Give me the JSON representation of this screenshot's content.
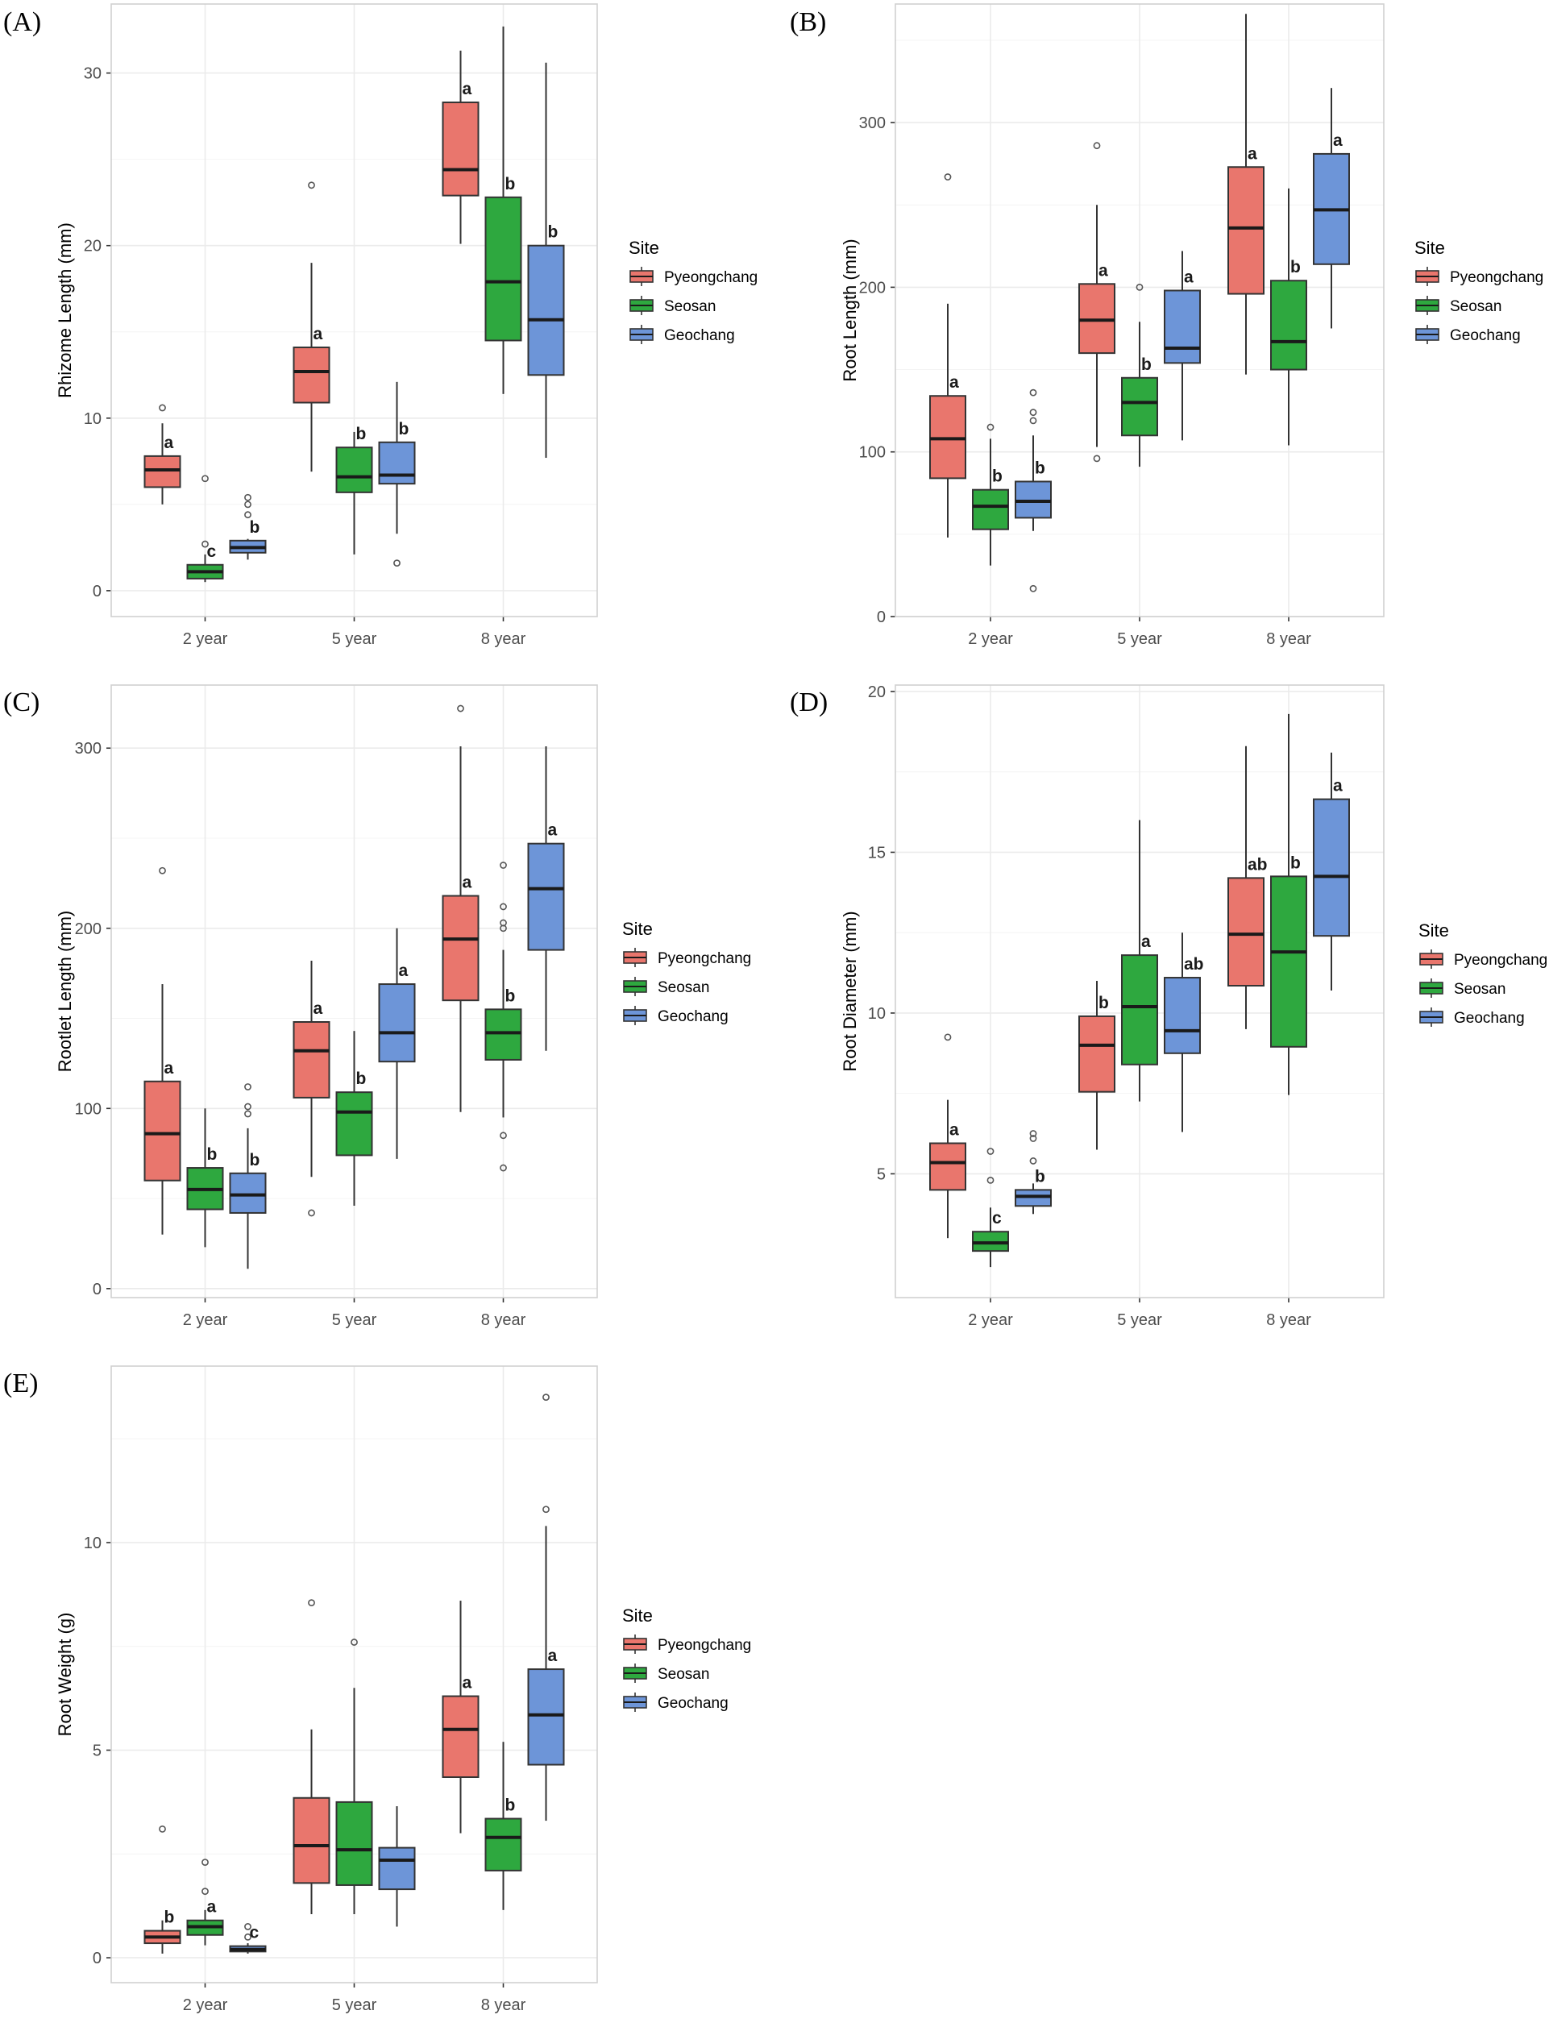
{
  "legend": {
    "title": "Site",
    "entries": [
      {
        "name": "Pyeongchang",
        "color": "#e9766d"
      },
      {
        "name": "Seosan",
        "color": "#2ea83f"
      },
      {
        "name": "Geochang",
        "color": "#6d95d8"
      }
    ]
  },
  "chart_data": [
    {
      "panel": "(A)",
      "type": "boxplot",
      "ylabel": "Rhizome Length (mm)",
      "categories": [
        "2 year",
        "5 year",
        "8 year"
      ],
      "ylim": [
        -1.5,
        34
      ],
      "yticks": [
        0,
        10,
        20,
        30
      ],
      "series": [
        {
          "name": "Pyeongchang",
          "boxes": [
            {
              "min": 5.0,
              "q1": 6.0,
              "median": 7.0,
              "q3": 7.8,
              "max": 9.7,
              "outliers": [
                10.6
              ],
              "letter": "a"
            },
            {
              "min": 6.9,
              "q1": 10.9,
              "median": 12.7,
              "q3": 14.1,
              "max": 19.0,
              "outliers": [
                23.5
              ],
              "letter": "a"
            },
            {
              "min": 20.1,
              "q1": 22.9,
              "median": 24.4,
              "q3": 28.3,
              "max": 31.3,
              "outliers": [],
              "letter": "a"
            }
          ]
        },
        {
          "name": "Seosan",
          "boxes": [
            {
              "min": 0.5,
              "q1": 0.7,
              "median": 1.1,
              "q3": 1.5,
              "max": 2.1,
              "outliers": [
                2.7,
                6.5
              ],
              "letter": "c"
            },
            {
              "min": 2.1,
              "q1": 5.7,
              "median": 6.6,
              "q3": 8.3,
              "max": 9.2,
              "outliers": [],
              "letter": "b"
            },
            {
              "min": 11.4,
              "q1": 14.5,
              "median": 17.9,
              "q3": 22.8,
              "max": 32.7,
              "outliers": [],
              "letter": "b"
            }
          ]
        },
        {
          "name": "Geochang",
          "boxes": [
            {
              "min": 1.8,
              "q1": 2.2,
              "median": 2.5,
              "q3": 2.9,
              "max": 3.0,
              "outliers": [
                4.4,
                5.0,
                5.4
              ],
              "letter": "b"
            },
            {
              "min": 3.3,
              "q1": 6.2,
              "median": 6.7,
              "q3": 8.6,
              "max": 12.1,
              "outliers": [
                1.6
              ],
              "letter": "b"
            },
            {
              "min": 7.7,
              "q1": 12.5,
              "median": 15.7,
              "q3": 20.0,
              "max": 30.6,
              "outliers": [],
              "letter": "b"
            }
          ]
        }
      ]
    },
    {
      "panel": "(B)",
      "type": "boxplot",
      "ylabel": "Root Length (mm)",
      "categories": [
        "2 year",
        "5 year",
        "8 year"
      ],
      "ylim": [
        0,
        372
      ],
      "yticks": [
        0,
        100,
        200,
        300
      ],
      "series": [
        {
          "name": "Pyeongchang",
          "boxes": [
            {
              "min": 48,
              "q1": 84,
              "median": 108,
              "q3": 134,
              "max": 190,
              "outliers": [
                267
              ],
              "letter": "a"
            },
            {
              "min": 103,
              "q1": 160,
              "median": 180,
              "q3": 202,
              "max": 250,
              "outliers": [
                96,
                286
              ],
              "letter": "a"
            },
            {
              "min": 147,
              "q1": 196,
              "median": 236,
              "q3": 273,
              "max": 366,
              "outliers": [],
              "letter": "a"
            }
          ]
        },
        {
          "name": "Seosan",
          "boxes": [
            {
              "min": 31,
              "q1": 53,
              "median": 67,
              "q3": 77,
              "max": 108,
              "outliers": [
                115
              ],
              "letter": "b"
            },
            {
              "min": 91,
              "q1": 110,
              "median": 130,
              "q3": 145,
              "max": 179,
              "outliers": [
                200
              ],
              "letter": "b"
            },
            {
              "min": 104,
              "q1": 150,
              "median": 167,
              "q3": 204,
              "max": 260,
              "outliers": [],
              "letter": "b"
            }
          ]
        },
        {
          "name": "Geochang",
          "boxes": [
            {
              "min": 52,
              "q1": 60,
              "median": 70,
              "q3": 82,
              "max": 110,
              "outliers": [
                119,
                124,
                136,
                17
              ],
              "letter": "b"
            },
            {
              "min": 107,
              "q1": 154,
              "median": 163,
              "q3": 198,
              "max": 222,
              "outliers": [],
              "letter": "a"
            },
            {
              "min": 175,
              "q1": 214,
              "median": 247,
              "q3": 281,
              "max": 321,
              "outliers": [],
              "letter": "a"
            }
          ]
        }
      ]
    },
    {
      "panel": "(C)",
      "type": "boxplot",
      "ylabel": "Rootlet Length (mm)",
      "categories": [
        "2 year",
        "5 year",
        "8 year"
      ],
      "ylim": [
        -5,
        335
      ],
      "yticks": [
        0,
        100,
        200,
        300
      ],
      "series": [
        {
          "name": "Pyeongchang",
          "boxes": [
            {
              "min": 30,
              "q1": 60,
              "median": 86,
              "q3": 115,
              "max": 169,
              "outliers": [
                232
              ],
              "letter": "a"
            },
            {
              "min": 62,
              "q1": 106,
              "median": 132,
              "q3": 148,
              "max": 182,
              "outliers": [
                42
              ],
              "letter": "a"
            },
            {
              "min": 98,
              "q1": 160,
              "median": 194,
              "q3": 218,
              "max": 301,
              "outliers": [
                322
              ],
              "letter": "a"
            }
          ]
        },
        {
          "name": "Seosan",
          "boxes": [
            {
              "min": 23,
              "q1": 44,
              "median": 55,
              "q3": 67,
              "max": 100,
              "outliers": [],
              "letter": "b"
            },
            {
              "min": 46,
              "q1": 74,
              "median": 98,
              "q3": 109,
              "max": 143,
              "outliers": [],
              "letter": "b"
            },
            {
              "min": 95,
              "q1": 127,
              "median": 142,
              "q3": 155,
              "max": 188,
              "outliers": [
                67,
                85,
                200,
                203,
                212,
                235
              ],
              "letter": "b"
            }
          ]
        },
        {
          "name": "Geochang",
          "boxes": [
            {
              "min": 11,
              "q1": 42,
              "median": 52,
              "q3": 64,
              "max": 89,
              "outliers": [
                97,
                101,
                112
              ],
              "letter": "b"
            },
            {
              "min": 72,
              "q1": 126,
              "median": 142,
              "q3": 169,
              "max": 200,
              "outliers": [],
              "letter": "a"
            },
            {
              "min": 132,
              "q1": 188,
              "median": 222,
              "q3": 247,
              "max": 301,
              "outliers": [],
              "letter": "a"
            }
          ]
        }
      ]
    },
    {
      "panel": "(D)",
      "type": "boxplot",
      "ylabel": "Root Diameter (mm)",
      "categories": [
        "2 year",
        "5 year",
        "8 year"
      ],
      "ylim": [
        1.15,
        20.2
      ],
      "yticks": [
        5,
        10,
        15,
        20
      ],
      "series": [
        {
          "name": "Pyeongchang",
          "boxes": [
            {
              "min": 3.0,
              "q1": 4.5,
              "median": 5.35,
              "q3": 5.95,
              "max": 7.3,
              "outliers": [
                9.25
              ],
              "letter": "a"
            },
            {
              "min": 5.75,
              "q1": 7.55,
              "median": 9.0,
              "q3": 9.9,
              "max": 11.0,
              "outliers": [],
              "letter": "b"
            },
            {
              "min": 9.5,
              "q1": 10.85,
              "median": 12.45,
              "q3": 14.2,
              "max": 18.3,
              "outliers": [],
              "letter": "ab"
            }
          ]
        },
        {
          "name": "Seosan",
          "boxes": [
            {
              "min": 2.1,
              "q1": 2.6,
              "median": 2.85,
              "q3": 3.2,
              "max": 3.95,
              "outliers": [
                4.8,
                5.7
              ],
              "letter": "c"
            },
            {
              "min": 7.25,
              "q1": 8.4,
              "median": 10.2,
              "q3": 11.8,
              "max": 16.0,
              "outliers": [],
              "letter": "a"
            },
            {
              "min": 7.45,
              "q1": 8.95,
              "median": 11.9,
              "q3": 14.25,
              "max": 19.3,
              "outliers": [],
              "letter": "b"
            }
          ]
        },
        {
          "name": "Geochang",
          "boxes": [
            {
              "min": 3.75,
              "q1": 4.0,
              "median": 4.3,
              "q3": 4.5,
              "max": 4.7,
              "outliers": [
                5.4,
                6.1,
                6.25
              ],
              "letter": "b"
            },
            {
              "min": 6.3,
              "q1": 8.75,
              "median": 9.45,
              "q3": 11.1,
              "max": 12.5,
              "outliers": [],
              "letter": "ab"
            },
            {
              "min": 10.7,
              "q1": 12.4,
              "median": 14.25,
              "q3": 16.65,
              "max": 18.1,
              "outliers": [],
              "letter": "a"
            }
          ]
        }
      ]
    },
    {
      "panel": "(E)",
      "type": "boxplot",
      "ylabel": "Root Weight (g)",
      "categories": [
        "2 year",
        "5 year",
        "8 year"
      ],
      "ylim": [
        -0.6,
        14.25
      ],
      "yticks": [
        0,
        5,
        10
      ],
      "series": [
        {
          "name": "Pyeongchang",
          "boxes": [
            {
              "min": 0.1,
              "q1": 0.35,
              "median": 0.5,
              "q3": 0.65,
              "max": 0.9,
              "outliers": [
                3.1
              ],
              "letter": "b"
            },
            {
              "min": 1.05,
              "q1": 1.8,
              "median": 2.7,
              "q3": 3.85,
              "max": 5.5,
              "outliers": [
                8.55
              ],
              "letter": ""
            },
            {
              "min": 3.0,
              "q1": 4.35,
              "median": 5.5,
              "q3": 6.3,
              "max": 8.6,
              "outliers": [],
              "letter": "a"
            }
          ]
        },
        {
          "name": "Seosan",
          "boxes": [
            {
              "min": 0.3,
              "q1": 0.55,
              "median": 0.75,
              "q3": 0.9,
              "max": 1.15,
              "outliers": [
                1.6,
                2.3
              ],
              "letter": "a"
            },
            {
              "min": 1.05,
              "q1": 1.75,
              "median": 2.6,
              "q3": 3.75,
              "max": 6.5,
              "outliers": [
                7.6
              ],
              "letter": ""
            },
            {
              "min": 1.15,
              "q1": 2.1,
              "median": 2.9,
              "q3": 3.35,
              "max": 5.2,
              "outliers": [],
              "letter": "b"
            }
          ]
        },
        {
          "name": "Geochang",
          "boxes": [
            {
              "min": 0.1,
              "q1": 0.15,
              "median": 0.2,
              "q3": 0.28,
              "max": 0.35,
              "outliers": [
                0.5,
                0.75
              ],
              "letter": "c"
            },
            {
              "min": 0.75,
              "q1": 1.65,
              "median": 2.35,
              "q3": 2.65,
              "max": 3.65,
              "outliers": [],
              "letter": ""
            },
            {
              "min": 3.3,
              "q1": 4.65,
              "median": 5.85,
              "q3": 6.95,
              "max": 10.4,
              "outliers": [
                10.8,
                13.5
              ],
              "letter": "a"
            }
          ]
        }
      ]
    }
  ]
}
